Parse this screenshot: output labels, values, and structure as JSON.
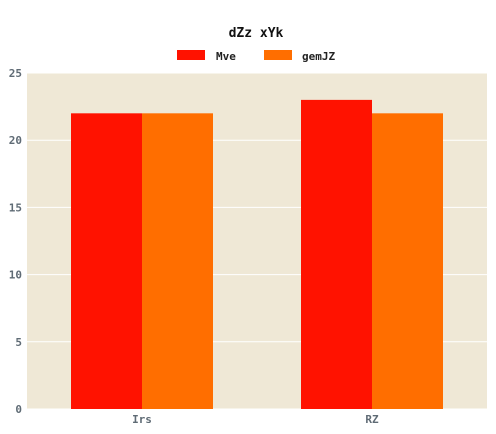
{
  "chart_data": {
    "type": "bar",
    "title": "dZz xYk",
    "categories": [
      "Irs",
      "RZ"
    ],
    "series": [
      {
        "name": "Mve",
        "values": [
          22,
          23
        ],
        "color": "#ff1200"
      },
      {
        "name": "gemJZ",
        "values": [
          22,
          22
        ],
        "color": "#ff6e00"
      }
    ],
    "yticks": [
      "0",
      "5",
      "10",
      "15",
      "20",
      "25"
    ],
    "ylim": [
      0,
      25
    ],
    "grid": true,
    "legend_position": "top",
    "plot_background": "#efe8d6"
  }
}
